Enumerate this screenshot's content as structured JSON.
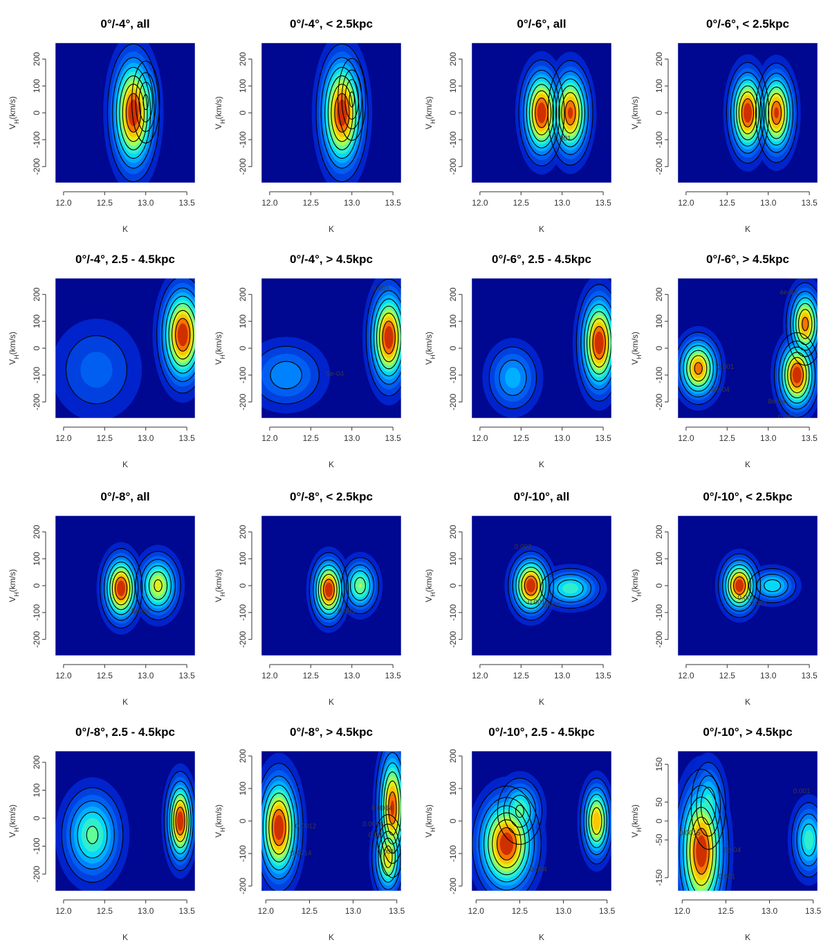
{
  "chart_data": [
    {
      "type": "heatmap",
      "title": "0°/-4°, all",
      "xlabel": "K",
      "ylabel": "V_H(km/s)",
      "xlim": [
        11.9,
        13.6
      ],
      "ylim": [
        -260,
        260
      ],
      "xticks": [
        12.0,
        12.5,
        13.0,
        13.5
      ],
      "yticks": [
        -200,
        -100,
        0,
        100,
        200
      ],
      "density_peaks": [
        {
          "k": 12.85,
          "v": 0,
          "strength": 1.0,
          "sk": 0.16,
          "sv": 130
        },
        {
          "k": 13.0,
          "v": 40,
          "strength": 0.6,
          "sk": 0.1,
          "sv": 90
        }
      ],
      "contour_labels": []
    },
    {
      "type": "heatmap",
      "title": "0°/-4°, < 2.5kpc",
      "xlabel": "K",
      "ylabel": "V_H(km/s)",
      "xlim": [
        11.9,
        13.6
      ],
      "ylim": [
        -260,
        260
      ],
      "xticks": [
        12.0,
        12.5,
        13.0,
        13.5
      ],
      "yticks": [
        -200,
        -100,
        0,
        100,
        200
      ],
      "density_peaks": [
        {
          "k": 12.88,
          "v": 0,
          "strength": 1.0,
          "sk": 0.16,
          "sv": 130
        },
        {
          "k": 13.0,
          "v": 50,
          "strength": 0.6,
          "sk": 0.1,
          "sv": 90
        }
      ],
      "contour_labels": []
    },
    {
      "type": "heatmap",
      "title": "0°/-6°, all",
      "xlabel": "K",
      "ylabel": "V_H(km/s)",
      "xlim": [
        11.9,
        13.6
      ],
      "ylim": [
        -260,
        260
      ],
      "xticks": [
        12.0,
        12.5,
        13.0,
        13.5
      ],
      "yticks": [
        -200,
        -100,
        0,
        100,
        200
      ],
      "density_peaks": [
        {
          "k": 12.75,
          "v": 0,
          "strength": 1.0,
          "sk": 0.14,
          "sv": 100
        },
        {
          "k": 13.1,
          "v": 0,
          "strength": 0.95,
          "sk": 0.14,
          "sv": 100
        }
      ],
      "contour_labels": [
        "0.001"
      ]
    },
    {
      "type": "heatmap",
      "title": "0°/-6°, < 2.5kpc",
      "xlabel": "K",
      "ylabel": "V_H(km/s)",
      "xlim": [
        11.9,
        13.6
      ],
      "ylim": [
        -260,
        260
      ],
      "xticks": [
        12.0,
        12.5,
        13.0,
        13.5
      ],
      "yticks": [
        -200,
        -100,
        0,
        100,
        200
      ],
      "density_peaks": [
        {
          "k": 12.75,
          "v": 0,
          "strength": 1.0,
          "sk": 0.13,
          "sv": 95
        },
        {
          "k": 13.1,
          "v": 0,
          "strength": 0.95,
          "sk": 0.13,
          "sv": 95
        }
      ],
      "contour_labels": []
    },
    {
      "type": "heatmap",
      "title": "0°/-4°, 2.5 - 4.5kpc",
      "xlabel": "K",
      "ylabel": "V_H(km/s)",
      "xlim": [
        11.9,
        13.6
      ],
      "ylim": [
        -260,
        260
      ],
      "xticks": [
        12.0,
        12.5,
        13.0,
        13.5
      ],
      "yticks": [
        -200,
        -100,
        0,
        100,
        200
      ],
      "density_peaks": [
        {
          "k": 13.45,
          "v": 50,
          "strength": 1.0,
          "sk": 0.16,
          "sv": 110
        },
        {
          "k": 12.4,
          "v": -80,
          "strength": 0.25,
          "sk": 0.35,
          "sv": 120
        }
      ],
      "contour_labels": []
    },
    {
      "type": "heatmap",
      "title": "0°/-4°, > 4.5kpc",
      "xlabel": "K",
      "ylabel": "V_H(km/s)",
      "xlim": [
        11.9,
        13.6
      ],
      "ylim": [
        -260,
        260
      ],
      "xticks": [
        12.0,
        12.5,
        13.0,
        13.5
      ],
      "yticks": [
        -200,
        -100,
        0,
        100,
        200
      ],
      "density_peaks": [
        {
          "k": 13.45,
          "v": 40,
          "strength": 1.0,
          "sk": 0.14,
          "sv": 110
        },
        {
          "k": 12.2,
          "v": -100,
          "strength": 0.35,
          "sk": 0.3,
          "sv": 80
        }
      ],
      "contour_labels": [
        "5e-04",
        "0.001",
        "0.001",
        "5e-04"
      ]
    },
    {
      "type": "heatmap",
      "title": "0°/-6°, 2.5 - 4.5kpc",
      "xlabel": "K",
      "ylabel": "V_H(km/s)",
      "xlim": [
        11.9,
        13.6
      ],
      "ylim": [
        -260,
        260
      ],
      "xticks": [
        12.0,
        12.5,
        13.0,
        13.5
      ],
      "yticks": [
        -200,
        -100,
        0,
        100,
        200
      ],
      "density_peaks": [
        {
          "k": 13.45,
          "v": 20,
          "strength": 1.0,
          "sk": 0.14,
          "sv": 110
        },
        {
          "k": 12.4,
          "v": -110,
          "strength": 0.4,
          "sk": 0.2,
          "sv": 80
        }
      ],
      "contour_labels": []
    },
    {
      "type": "heatmap",
      "title": "0°/-6°, > 4.5kpc",
      "xlabel": "K",
      "ylabel": "V_H(km/s)",
      "xlim": [
        11.9,
        13.6
      ],
      "ylim": [
        -260,
        260
      ],
      "xticks": [
        12.0,
        12.5,
        13.0,
        13.5
      ],
      "yticks": [
        -200,
        -100,
        0,
        100,
        200
      ],
      "density_peaks": [
        {
          "k": 12.15,
          "v": -75,
          "strength": 0.9,
          "sk": 0.15,
          "sv": 70
        },
        {
          "k": 13.35,
          "v": -100,
          "strength": 1.0,
          "sk": 0.14,
          "sv": 80
        },
        {
          "k": 13.45,
          "v": 90,
          "strength": 0.9,
          "sk": 0.12,
          "sv": 80
        }
      ],
      "contour_labels": [
        "4e-04",
        "8e-04",
        "0.0012",
        "0.001",
        "0.0016",
        "4e-04"
      ]
    },
    {
      "type": "heatmap",
      "title": "0°/-8°, all",
      "xlabel": "K",
      "ylabel": "V_H(km/s)",
      "xlim": [
        11.9,
        13.6
      ],
      "ylim": [
        -260,
        260
      ],
      "xticks": [
        12.0,
        12.5,
        13.0,
        13.5
      ],
      "yticks": [
        -200,
        -100,
        0,
        100,
        200
      ],
      "density_peaks": [
        {
          "k": 12.7,
          "v": -10,
          "strength": 1.0,
          "sk": 0.13,
          "sv": 75
        },
        {
          "k": 13.15,
          "v": 0,
          "strength": 0.75,
          "sk": 0.15,
          "sv": 70
        }
      ],
      "contour_labels": [
        "5e-04"
      ]
    },
    {
      "type": "heatmap",
      "title": "0°/-8°, < 2.5kpc",
      "xlabel": "K",
      "ylabel": "V_H(km/s)",
      "xlim": [
        11.9,
        13.6
      ],
      "ylim": [
        -260,
        260
      ],
      "xticks": [
        12.0,
        12.5,
        13.0,
        13.5
      ],
      "yticks": [
        -200,
        -100,
        0,
        100,
        200
      ],
      "density_peaks": [
        {
          "k": 12.72,
          "v": -15,
          "strength": 1.0,
          "sk": 0.12,
          "sv": 70
        },
        {
          "k": 13.1,
          "v": 0,
          "strength": 0.65,
          "sk": 0.13,
          "sv": 60
        }
      ],
      "contour_labels": [
        "0.001"
      ]
    },
    {
      "type": "heatmap",
      "title": "0°/-10°, all",
      "xlabel": "K",
      "ylabel": "V_H(km/s)",
      "xlim": [
        11.9,
        13.6
      ],
      "ylim": [
        -260,
        260
      ],
      "xticks": [
        12.0,
        12.5,
        13.0,
        13.5
      ],
      "yticks": [
        -200,
        -100,
        0,
        100,
        200
      ],
      "density_peaks": [
        {
          "k": 12.62,
          "v": 0,
          "strength": 1.0,
          "sk": 0.14,
          "sv": 65
        },
        {
          "k": 13.1,
          "v": -10,
          "strength": 0.55,
          "sk": 0.22,
          "sv": 45
        }
      ],
      "contour_labels": [
        "0.002",
        "0.0018",
        "0.002"
      ]
    },
    {
      "type": "heatmap",
      "title": "0°/-10°, < 2.5kpc",
      "xlabel": "K",
      "ylabel": "V_H(km/s)",
      "xlim": [
        11.9,
        13.6
      ],
      "ylim": [
        -260,
        260
      ],
      "xticks": [
        12.0,
        12.5,
        13.0,
        13.5
      ],
      "yticks": [
        -200,
        -100,
        0,
        100,
        200
      ],
      "density_peaks": [
        {
          "k": 12.65,
          "v": 0,
          "strength": 1.0,
          "sk": 0.13,
          "sv": 60
        },
        {
          "k": 13.05,
          "v": 0,
          "strength": 0.5,
          "sk": 0.18,
          "sv": 40
        }
      ],
      "contour_labels": [
        "0.001",
        "0.001"
      ]
    },
    {
      "type": "heatmap",
      "title": "0°/-8°, 2.5 - 4.5kpc",
      "xlabel": "K",
      "ylabel": "V_H(km/s)",
      "xlim": [
        11.9,
        13.6
      ],
      "ylim": [
        -260,
        240
      ],
      "xticks": [
        12.0,
        12.5,
        13.0,
        13.5
      ],
      "yticks": [
        -200,
        -100,
        0,
        100,
        200
      ],
      "density_peaks": [
        {
          "k": 13.42,
          "v": -10,
          "strength": 1.0,
          "sk": 0.1,
          "sv": 90
        },
        {
          "k": 12.35,
          "v": -60,
          "strength": 0.6,
          "sk": 0.22,
          "sv": 100
        }
      ],
      "contour_labels": []
    },
    {
      "type": "heatmap",
      "title": "0°/-8°, > 4.5kpc",
      "xlabel": "K",
      "ylabel": "V_H(km/s)",
      "xlim": [
        11.95,
        13.55
      ],
      "ylim": [
        -215,
        215
      ],
      "xticks": [
        12.0,
        12.5,
        13.0,
        13.5
      ],
      "yticks": [
        -200,
        -100,
        0,
        100,
        200
      ],
      "density_peaks": [
        {
          "k": 12.15,
          "v": -20,
          "strength": 1.0,
          "sk": 0.14,
          "sv": 100
        },
        {
          "k": 13.45,
          "v": 40,
          "strength": 0.95,
          "sk": 0.1,
          "sv": 110
        },
        {
          "k": 13.4,
          "v": -110,
          "strength": 0.8,
          "sk": 0.1,
          "sv": 70
        }
      ],
      "contour_labels": [
        "0.0014",
        "0.001",
        "0.0014",
        "0.0012",
        "0.001",
        "0.0016"
      ]
    },
    {
      "type": "heatmap",
      "title": "0°/-10°, 2.5 - 4.5kpc",
      "xlabel": "K",
      "ylabel": "V_H(km/s)",
      "xlim": [
        11.95,
        13.55
      ],
      "ylim": [
        -215,
        215
      ],
      "xticks": [
        12.0,
        12.5,
        13.0,
        13.5
      ],
      "yticks": [
        -200,
        -100,
        0,
        100,
        200
      ],
      "density_peaks": [
        {
          "k": 12.35,
          "v": -70,
          "strength": 1.0,
          "sk": 0.2,
          "sv": 90
        },
        {
          "k": 12.5,
          "v": 30,
          "strength": 0.6,
          "sk": 0.15,
          "sv": 60
        },
        {
          "k": 13.38,
          "v": 0,
          "strength": 0.85,
          "sk": 0.1,
          "sv": 70
        }
      ],
      "contour_labels": [
        "0.004"
      ]
    },
    {
      "type": "heatmap",
      "title": "0°/-10°, > 4.5kpc",
      "xlabel": "K",
      "ylabel": "V_H(km/s)",
      "xlim": [
        11.95,
        13.55
      ],
      "ylim": [
        -185,
        185
      ],
      "xticks": [
        12.0,
        12.5,
        13.0,
        13.5
      ],
      "yticks": [
        -150,
        -50,
        0,
        50,
        150
      ],
      "density_peaks": [
        {
          "k": 12.22,
          "v": -80,
          "strength": 1.0,
          "sk": 0.16,
          "sv": 110
        },
        {
          "k": 12.3,
          "v": 40,
          "strength": 0.55,
          "sk": 0.12,
          "sv": 70
        },
        {
          "k": 13.45,
          "v": -50,
          "strength": 0.55,
          "sk": 0.12,
          "sv": 60
        }
      ],
      "contour_labels": [
        "0.001",
        "0.0015",
        "0.001",
        "5e-04"
      ]
    }
  ]
}
